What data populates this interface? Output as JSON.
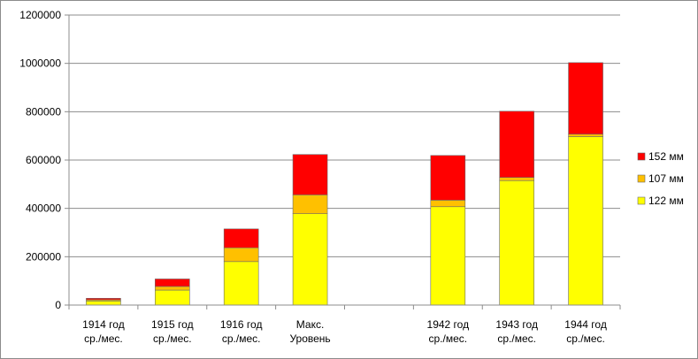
{
  "chart_data": {
    "type": "bar",
    "stacked": true,
    "categories": [
      [
        "1914 год",
        "ср./мес."
      ],
      [
        "1915 год",
        "ср./мес."
      ],
      [
        "1916 год",
        "ср./мес."
      ],
      [
        "Макс.",
        "Уровень"
      ],
      [
        "",
        ""
      ],
      [
        "1942 год",
        "ср./мес."
      ],
      [
        "1943 год",
        "ср./мес."
      ],
      [
        "1944 год",
        "ср./мес."
      ]
    ],
    "series": [
      {
        "name": "122 мм",
        "color": "#ffff00",
        "values": [
          17000,
          62000,
          180000,
          378000,
          null,
          407000,
          515000,
          697000
        ]
      },
      {
        "name": "107 мм",
        "color": "#ffc000",
        "values": [
          5000,
          15000,
          57000,
          78000,
          null,
          27000,
          13000,
          10000
        ]
      },
      {
        "name": "152 мм",
        "color": "#ff0000",
        "values": [
          6000,
          31000,
          78000,
          167000,
          null,
          185000,
          274000,
          296000
        ]
      }
    ],
    "ylim": [
      0,
      1200000
    ],
    "yticks": [
      "0",
      "200000",
      "400000",
      "600000",
      "800000",
      "1000000",
      "1200000"
    ],
    "ytick_values": [
      0,
      200000,
      400000,
      600000,
      800000,
      1000000,
      1200000
    ],
    "grid": true,
    "legend_position": "right",
    "legend_order": [
      "152 мм",
      "107 мм",
      "122 мм"
    ]
  }
}
